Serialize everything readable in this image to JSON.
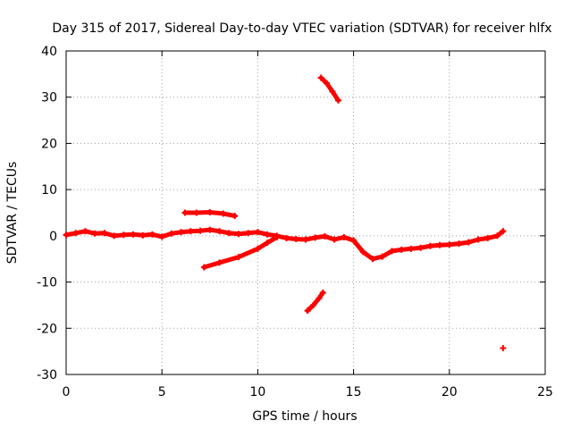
{
  "chart_data": {
    "type": "scatter",
    "title": "Day 315 of 2017, Sidereal Day-to-day VTEC variation (SDTVAR) for receiver hlfx",
    "xlabel": "GPS time / hours",
    "ylabel": "SDTVAR / TECUs",
    "xlim": [
      0,
      25
    ],
    "ylim": [
      -30,
      40
    ],
    "x_ticks": [
      0,
      5,
      10,
      15,
      20,
      25
    ],
    "y_ticks": [
      -30,
      -20,
      -10,
      0,
      10,
      20,
      30,
      40
    ],
    "grid": true,
    "series_color": "#ff0000",
    "series": [
      {
        "name": "main-trace",
        "points": [
          [
            0.0,
            0.2
          ],
          [
            0.5,
            0.6
          ],
          [
            1.0,
            1.0
          ],
          [
            1.5,
            0.5
          ],
          [
            2.0,
            0.6
          ],
          [
            2.5,
            0.0
          ],
          [
            3.0,
            0.2
          ],
          [
            3.5,
            0.3
          ],
          [
            4.0,
            0.1
          ],
          [
            4.5,
            0.3
          ],
          [
            5.0,
            -0.2
          ],
          [
            5.5,
            0.5
          ],
          [
            6.0,
            0.8
          ],
          [
            6.5,
            1.0
          ],
          [
            7.0,
            1.1
          ],
          [
            7.5,
            1.3
          ],
          [
            8.0,
            1.0
          ],
          [
            8.5,
            0.6
          ],
          [
            9.0,
            0.4
          ],
          [
            9.5,
            0.6
          ],
          [
            10.0,
            0.8
          ],
          [
            10.5,
            0.3
          ],
          [
            11.0,
            0.0
          ],
          [
            11.5,
            -0.5
          ],
          [
            12.0,
            -0.7
          ],
          [
            12.5,
            -0.8
          ],
          [
            13.0,
            -0.4
          ],
          [
            13.5,
            -0.1
          ],
          [
            14.0,
            -0.8
          ],
          [
            14.5,
            -0.3
          ],
          [
            15.0,
            -1.0
          ],
          [
            15.5,
            -3.5
          ],
          [
            16.0,
            -5.0
          ],
          [
            16.5,
            -4.5
          ],
          [
            17.0,
            -3.3
          ],
          [
            17.5,
            -3.0
          ],
          [
            18.0,
            -2.8
          ],
          [
            18.5,
            -2.6
          ],
          [
            19.0,
            -2.2
          ],
          [
            19.5,
            -2.0
          ],
          [
            20.0,
            -1.9
          ],
          [
            20.5,
            -1.7
          ],
          [
            21.0,
            -1.4
          ],
          [
            21.5,
            -0.8
          ],
          [
            22.0,
            -0.5
          ],
          [
            22.5,
            0.0
          ],
          [
            22.8,
            1.0
          ]
        ]
      },
      {
        "name": "upper-segment",
        "points": [
          [
            6.2,
            5.0
          ],
          [
            6.8,
            5.0
          ],
          [
            7.5,
            5.1
          ],
          [
            8.2,
            4.8
          ],
          [
            8.8,
            4.3
          ]
        ]
      },
      {
        "name": "descending-segment",
        "points": [
          [
            7.2,
            -6.8
          ],
          [
            8.0,
            -5.8
          ],
          [
            9.0,
            -4.6
          ],
          [
            10.0,
            -2.8
          ],
          [
            10.5,
            -1.5
          ],
          [
            11.0,
            -0.3
          ]
        ]
      },
      {
        "name": "high-segment",
        "points": [
          [
            13.3,
            34.2
          ],
          [
            13.6,
            33.0
          ],
          [
            13.9,
            31.2
          ],
          [
            14.2,
            29.3
          ]
        ]
      },
      {
        "name": "low-segment",
        "points": [
          [
            12.6,
            -16.2
          ],
          [
            12.9,
            -15.0
          ],
          [
            13.2,
            -13.5
          ],
          [
            13.4,
            -12.3
          ]
        ]
      },
      {
        "name": "outlier",
        "points": [
          [
            22.8,
            -24.3
          ]
        ]
      }
    ]
  }
}
